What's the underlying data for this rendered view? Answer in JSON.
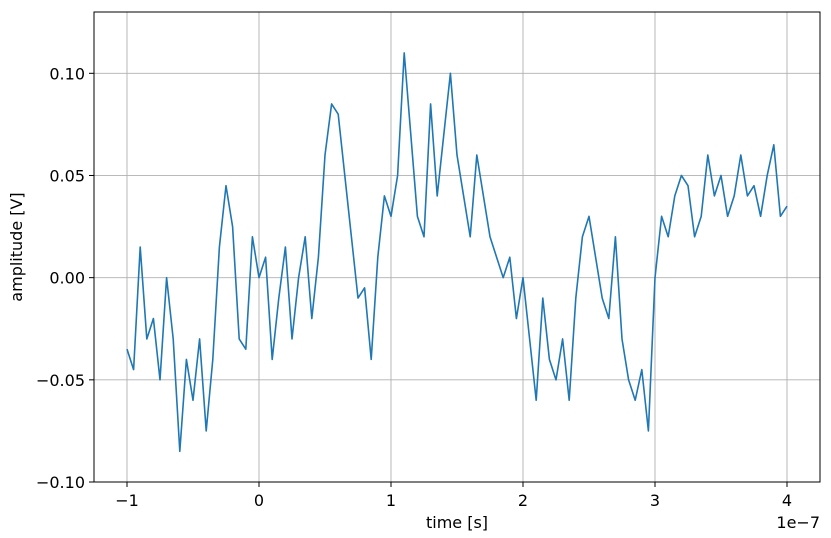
{
  "chart_data": {
    "type": "line",
    "title": "",
    "xlabel": "time [s]",
    "ylabel": "amplitude [V]",
    "x_offset_label": "1e−7",
    "xlim": [
      -1.25,
      4.25
    ],
    "ylim": [
      -0.1,
      0.13
    ],
    "x_scale": 1e-07,
    "x_ticks": [
      {
        "value": -1,
        "label": "−1"
      },
      {
        "value": 0,
        "label": "0"
      },
      {
        "value": 1,
        "label": "1"
      },
      {
        "value": 2,
        "label": "2"
      },
      {
        "value": 3,
        "label": "3"
      },
      {
        "value": 4,
        "label": "4"
      }
    ],
    "y_ticks": [
      {
        "value": -0.1,
        "label": "−0.10"
      },
      {
        "value": -0.05,
        "label": "−0.05"
      },
      {
        "value": 0.0,
        "label": "0.00"
      },
      {
        "value": 0.05,
        "label": "0.05"
      },
      {
        "value": 0.1,
        "label": "0.10"
      }
    ],
    "grid": true,
    "line_color": "#1f77b4",
    "series": [
      {
        "x": [
          -1.0,
          -0.95,
          -0.9,
          -0.85,
          -0.8,
          -0.75,
          -0.7,
          -0.65,
          -0.6,
          -0.55,
          -0.5,
          -0.45,
          -0.4,
          -0.35,
          -0.3,
          -0.25,
          -0.2,
          -0.15,
          -0.1,
          -0.05,
          0.0,
          0.05,
          0.1,
          0.15,
          0.2,
          0.25,
          0.3,
          0.35,
          0.4,
          0.45,
          0.5,
          0.55,
          0.6,
          0.65,
          0.7,
          0.75,
          0.8,
          0.85,
          0.9,
          0.95,
          1.0,
          1.05,
          1.1,
          1.15,
          1.2,
          1.25,
          1.3,
          1.35,
          1.4,
          1.45,
          1.5,
          1.55,
          1.6,
          1.65,
          1.7,
          1.75,
          1.8,
          1.85,
          1.9,
          1.95,
          2.0,
          2.05,
          2.1,
          2.15,
          2.2,
          2.25,
          2.3,
          2.35,
          2.4,
          2.45,
          2.5,
          2.55,
          2.6,
          2.65,
          2.7,
          2.75,
          2.8,
          2.85,
          2.9,
          2.95,
          3.0,
          3.05,
          3.1,
          3.15,
          3.2,
          3.25,
          3.3,
          3.35,
          3.4,
          3.45,
          3.5,
          3.55,
          3.6,
          3.65,
          3.7,
          3.75,
          3.8,
          3.85,
          3.9,
          3.95,
          4.0
        ],
        "y": [
          -0.035,
          -0.045,
          0.015,
          -0.03,
          -0.02,
          -0.05,
          0.0,
          -0.03,
          -0.085,
          -0.04,
          -0.06,
          -0.03,
          -0.075,
          -0.04,
          0.015,
          0.045,
          0.025,
          -0.03,
          -0.035,
          0.02,
          0.0,
          0.01,
          -0.04,
          -0.01,
          0.015,
          -0.03,
          0.0,
          0.02,
          -0.02,
          0.01,
          0.06,
          0.085,
          0.08,
          0.05,
          0.02,
          -0.01,
          -0.005,
          -0.04,
          0.01,
          0.04,
          0.03,
          0.05,
          0.11,
          0.07,
          0.03,
          0.02,
          0.085,
          0.04,
          0.07,
          0.1,
          0.06,
          0.04,
          0.02,
          0.06,
          0.04,
          0.02,
          0.01,
          0.0,
          0.01,
          -0.02,
          0.0,
          -0.03,
          -0.06,
          -0.01,
          -0.04,
          -0.05,
          -0.03,
          -0.06,
          -0.01,
          0.02,
          0.03,
          0.01,
          -0.01,
          -0.02,
          0.02,
          -0.03,
          -0.05,
          -0.06,
          -0.045,
          -0.075,
          0.0,
          0.03,
          0.02,
          0.04,
          0.05,
          0.045,
          0.02,
          0.03,
          0.06,
          0.04,
          0.05,
          0.03,
          0.04,
          0.06,
          0.04,
          0.045,
          0.03,
          0.05,
          0.065,
          0.03,
          0.035
        ]
      }
    ]
  }
}
